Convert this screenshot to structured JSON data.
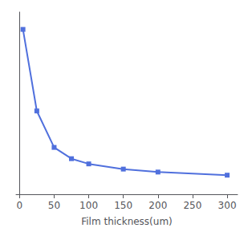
{
  "chart_data": {
    "type": "line",
    "xlabel": "Film thickness(um)",
    "x": [
      5,
      25,
      50,
      75,
      100,
      150,
      200,
      300
    ],
    "values": [
      0.95,
      0.48,
      0.27,
      0.205,
      0.175,
      0.145,
      0.128,
      0.11
    ],
    "xlim": [
      -5,
      315
    ],
    "xticks": [
      0,
      50,
      100,
      150,
      200,
      250,
      300
    ],
    "ylim": [
      0.0,
      1.05
    ],
    "marker": "square",
    "grid": false,
    "tick_labels": "x"
  }
}
